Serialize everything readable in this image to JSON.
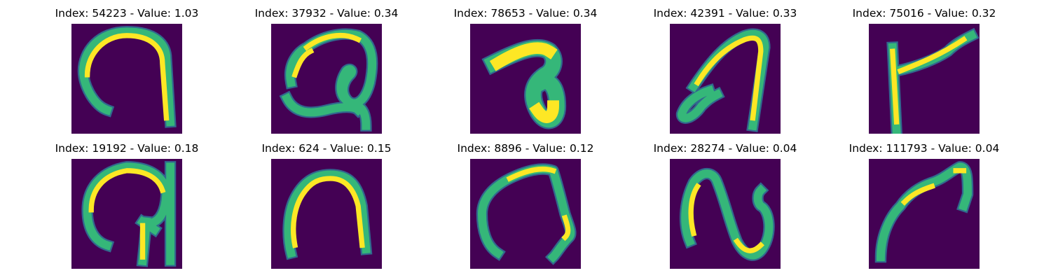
{
  "colors": {
    "background": "#440154",
    "low": "#31688e",
    "mid": "#35b779",
    "high": "#fde725",
    "title": "#000000"
  },
  "panels": [
    {
      "title": "Index: 54223 - Value: 1.03"
    },
    {
      "title": "Index: 37932 - Value: 0.34"
    },
    {
      "title": "Index: 78653 - Value: 0.34"
    },
    {
      "title": "Index: 42391 - Value: 0.33"
    },
    {
      "title": "Index: 75016 - Value: 0.32"
    },
    {
      "title": "Index: 19192 - Value: 0.18"
    },
    {
      "title": "Index: 624 - Value: 0.15"
    },
    {
      "title": "Index: 8896 - Value: 0.12"
    },
    {
      "title": "Index: 28274 - Value: 0.04"
    },
    {
      "title": "Index: 111793 - Value: 0.04"
    }
  ]
}
